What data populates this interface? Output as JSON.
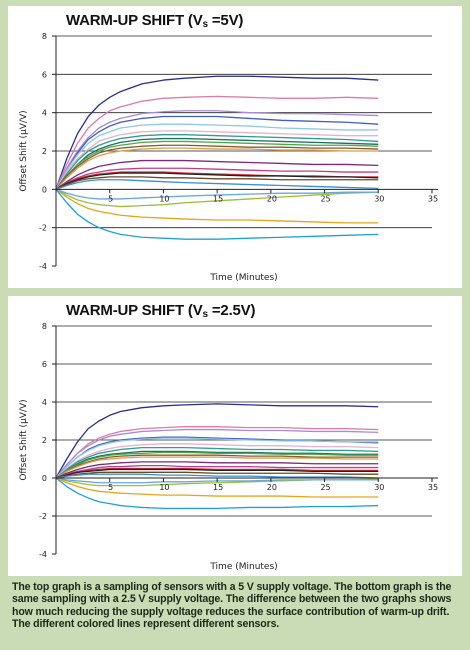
{
  "chart_data": [
    {
      "type": "line",
      "title_main": "WARM-UP SHIFT (V",
      "title_sub": "s",
      "title_end": " =5V)",
      "xlabel": "Time (Minutes)",
      "ylabel": "Offset Shift (µV/V)",
      "xlim": [
        0,
        35
      ],
      "ylim": [
        -4,
        8
      ],
      "xticks": [
        "5",
        "10",
        "15",
        "20",
        "25",
        "30",
        "35"
      ],
      "yticks": [
        "8",
        "6",
        "4",
        "2",
        "0",
        "-2",
        "-4"
      ],
      "grid": "horizontal",
      "x": [
        0,
        1,
        2,
        3,
        4,
        5,
        6,
        8,
        10,
        12,
        15,
        18,
        21,
        24,
        27,
        30
      ],
      "series": [
        {
          "color": "#2a2f8f",
          "values": [
            0,
            1.6,
            2.9,
            3.8,
            4.4,
            4.8,
            5.1,
            5.5,
            5.7,
            5.8,
            5.9,
            5.9,
            5.85,
            5.8,
            5.8,
            5.7
          ]
        },
        {
          "color": "#e07aa8",
          "values": [
            0,
            1.3,
            2.4,
            3.2,
            3.7,
            4.1,
            4.3,
            4.6,
            4.75,
            4.8,
            4.85,
            4.8,
            4.75,
            4.75,
            4.8,
            4.75
          ]
        },
        {
          "color": "#a78bd6",
          "values": [
            0,
            1.1,
            2.0,
            2.7,
            3.2,
            3.5,
            3.7,
            3.95,
            4.05,
            4.1,
            4.1,
            4.0,
            3.95,
            3.95,
            3.9,
            3.85
          ]
        },
        {
          "color": "#3f5fc0",
          "values": [
            0,
            1.0,
            1.9,
            2.6,
            3.0,
            3.3,
            3.5,
            3.7,
            3.8,
            3.8,
            3.8,
            3.7,
            3.6,
            3.55,
            3.5,
            3.4
          ]
        },
        {
          "color": "#8fc7e8",
          "values": [
            0,
            1.0,
            1.8,
            2.4,
            2.8,
            3.0,
            3.2,
            3.35,
            3.4,
            3.4,
            3.35,
            3.3,
            3.2,
            3.15,
            3.1,
            3.1
          ]
        },
        {
          "color": "#e6b3cc",
          "values": [
            0,
            0.9,
            1.6,
            2.1,
            2.5,
            2.7,
            2.85,
            3.0,
            3.05,
            3.05,
            3.0,
            2.95,
            2.9,
            2.85,
            2.8,
            2.8
          ]
        },
        {
          "color": "#2e9e8f",
          "values": [
            0,
            0.8,
            1.5,
            2.0,
            2.3,
            2.5,
            2.65,
            2.8,
            2.85,
            2.85,
            2.8,
            2.75,
            2.7,
            2.65,
            2.6,
            2.5
          ]
        },
        {
          "color": "#1f6e5a",
          "values": [
            0,
            0.7,
            1.3,
            1.8,
            2.1,
            2.3,
            2.45,
            2.6,
            2.65,
            2.65,
            2.6,
            2.55,
            2.5,
            2.45,
            2.4,
            2.35
          ]
        },
        {
          "color": "#4aa84a",
          "values": [
            0,
            0.7,
            1.3,
            1.7,
            2.0,
            2.2,
            2.3,
            2.45,
            2.5,
            2.5,
            2.45,
            2.4,
            2.35,
            2.3,
            2.3,
            2.25
          ]
        },
        {
          "color": "#8b5a2b",
          "values": [
            0,
            0.7,
            1.2,
            1.6,
            1.9,
            2.05,
            2.15,
            2.25,
            2.3,
            2.3,
            2.25,
            2.2,
            2.2,
            2.15,
            2.15,
            2.1
          ]
        },
        {
          "color": "#d4a050",
          "values": [
            0,
            0.6,
            1.1,
            1.5,
            1.75,
            1.9,
            2.0,
            2.1,
            2.15,
            2.15,
            2.1,
            2.1,
            2.05,
            2.05,
            2.0,
            2.0
          ]
        },
        {
          "color": "#7a2a7a",
          "values": [
            0,
            0.4,
            0.75,
            1.0,
            1.2,
            1.3,
            1.4,
            1.5,
            1.5,
            1.5,
            1.45,
            1.4,
            1.35,
            1.3,
            1.3,
            1.25
          ]
        },
        {
          "color": "#c23b8f",
          "values": [
            0,
            0.35,
            0.6,
            0.8,
            0.9,
            1.0,
            1.05,
            1.1,
            1.1,
            1.1,
            1.05,
            1.0,
            0.95,
            0.95,
            0.9,
            0.9
          ]
        },
        {
          "color": "#cc3333",
          "values": [
            0,
            0.3,
            0.55,
            0.7,
            0.8,
            0.85,
            0.9,
            0.9,
            0.9,
            0.85,
            0.8,
            0.75,
            0.7,
            0.7,
            0.65,
            0.65
          ]
        },
        {
          "color": "#222222",
          "values": [
            0,
            0.3,
            0.5,
            0.65,
            0.75,
            0.8,
            0.85,
            0.85,
            0.85,
            0.8,
            0.75,
            0.7,
            0.7,
            0.65,
            0.65,
            0.6
          ]
        },
        {
          "color": "#6b4a2a",
          "values": [
            0,
            0.25,
            0.45,
            0.55,
            0.6,
            0.65,
            0.65,
            0.65,
            0.6,
            0.6,
            0.55,
            0.55,
            0.5,
            0.5,
            0.5,
            0.5
          ]
        },
        {
          "color": "#3a8fd6",
          "values": [
            0,
            0.2,
            0.35,
            0.45,
            0.5,
            0.5,
            0.5,
            0.45,
            0.4,
            0.35,
            0.3,
            0.25,
            0.2,
            0.15,
            0.1,
            0.05
          ]
        },
        {
          "color": "#9bbf3a",
          "values": [
            0,
            -0.3,
            -0.55,
            -0.7,
            -0.8,
            -0.85,
            -0.9,
            -0.85,
            -0.8,
            -0.7,
            -0.6,
            -0.5,
            -0.4,
            -0.3,
            -0.2,
            -0.15
          ]
        },
        {
          "color": "#6aa8d8",
          "values": [
            0,
            -0.2,
            -0.35,
            -0.45,
            -0.5,
            -0.5,
            -0.5,
            -0.45,
            -0.4,
            -0.35,
            -0.3,
            -0.25,
            -0.2,
            -0.2,
            -0.15,
            -0.15
          ]
        },
        {
          "color": "#e8a41a",
          "values": [
            0,
            -0.4,
            -0.75,
            -1.0,
            -1.15,
            -1.25,
            -1.35,
            -1.45,
            -1.5,
            -1.55,
            -1.6,
            -1.6,
            -1.65,
            -1.7,
            -1.75,
            -1.75
          ]
        },
        {
          "color": "#1fa0dc",
          "values": [
            0,
            -0.7,
            -1.3,
            -1.7,
            -2.0,
            -2.2,
            -2.35,
            -2.5,
            -2.55,
            -2.6,
            -2.6,
            -2.55,
            -2.5,
            -2.45,
            -2.4,
            -2.35
          ]
        }
      ]
    },
    {
      "type": "line",
      "title_main": "WARM-UP SHIFT (V",
      "title_sub": "s",
      "title_end": " =2.5V)",
      "xlabel": "Time (Minutes)",
      "ylabel": "Offset Shift (µV/V)",
      "xlim": [
        0,
        35
      ],
      "ylim": [
        -4,
        8
      ],
      "xticks": [
        "5",
        "10",
        "15",
        "20",
        "25",
        "30",
        "35"
      ],
      "yticks": [
        "8",
        "6",
        "4",
        "2",
        "0",
        "-2",
        "-4"
      ],
      "grid": "horizontal",
      "x": [
        0,
        1,
        2,
        3,
        4,
        5,
        6,
        8,
        10,
        12,
        15,
        18,
        21,
        24,
        27,
        30
      ],
      "series": [
        {
          "color": "#2a2f8f",
          "values": [
            0,
            1.0,
            1.9,
            2.6,
            3.0,
            3.3,
            3.5,
            3.7,
            3.8,
            3.85,
            3.9,
            3.85,
            3.8,
            3.8,
            3.8,
            3.75
          ]
        },
        {
          "color": "#e07aa8",
          "values": [
            0,
            0.7,
            1.3,
            1.8,
            2.1,
            2.3,
            2.45,
            2.6,
            2.65,
            2.7,
            2.7,
            2.65,
            2.65,
            2.6,
            2.6,
            2.55
          ]
        },
        {
          "color": "#a78bd6",
          "values": [
            0,
            0.7,
            1.3,
            1.7,
            2.0,
            2.2,
            2.3,
            2.45,
            2.5,
            2.55,
            2.55,
            2.5,
            2.5,
            2.45,
            2.45,
            2.4
          ]
        },
        {
          "color": "#3f5fc0",
          "values": [
            0,
            0.6,
            1.1,
            1.5,
            1.75,
            1.9,
            2.0,
            2.1,
            2.15,
            2.15,
            2.1,
            2.05,
            2.0,
            1.95,
            1.9,
            1.85
          ]
        },
        {
          "color": "#8fc7e8",
          "values": [
            0,
            0.6,
            1.1,
            1.45,
            1.7,
            1.85,
            1.95,
            2.05,
            2.1,
            2.1,
            2.05,
            2.0,
            1.95,
            1.95,
            1.9,
            1.9
          ]
        },
        {
          "color": "#e6b3cc",
          "values": [
            0,
            0.5,
            0.9,
            1.2,
            1.4,
            1.55,
            1.65,
            1.75,
            1.8,
            1.8,
            1.75,
            1.7,
            1.7,
            1.65,
            1.65,
            1.6
          ]
        },
        {
          "color": "#2e9e8f",
          "values": [
            0,
            0.45,
            0.85,
            1.1,
            1.3,
            1.4,
            1.5,
            1.6,
            1.6,
            1.6,
            1.55,
            1.5,
            1.5,
            1.45,
            1.45,
            1.4
          ]
        },
        {
          "color": "#1f6e5a",
          "values": [
            0,
            0.4,
            0.75,
            1.0,
            1.15,
            1.25,
            1.3,
            1.4,
            1.4,
            1.4,
            1.35,
            1.35,
            1.3,
            1.3,
            1.25,
            1.25
          ]
        },
        {
          "color": "#4aa84a",
          "values": [
            0,
            0.4,
            0.7,
            0.95,
            1.1,
            1.2,
            1.25,
            1.3,
            1.35,
            1.35,
            1.3,
            1.3,
            1.25,
            1.25,
            1.2,
            1.2
          ]
        },
        {
          "color": "#8b5a2b",
          "values": [
            0,
            0.35,
            0.65,
            0.85,
            1.0,
            1.1,
            1.15,
            1.2,
            1.2,
            1.2,
            1.2,
            1.15,
            1.15,
            1.1,
            1.1,
            1.1
          ]
        },
        {
          "color": "#d4a050",
          "values": [
            0,
            0.35,
            0.6,
            0.8,
            0.95,
            1.0,
            1.05,
            1.1,
            1.1,
            1.1,
            1.1,
            1.05,
            1.05,
            1.05,
            1.0,
            1.0
          ]
        },
        {
          "color": "#7a2a7a",
          "values": [
            0,
            0.25,
            0.45,
            0.6,
            0.7,
            0.75,
            0.8,
            0.85,
            0.85,
            0.85,
            0.8,
            0.8,
            0.8,
            0.75,
            0.75,
            0.75
          ]
        },
        {
          "color": "#c23b8f",
          "values": [
            0,
            0.2,
            0.35,
            0.45,
            0.55,
            0.6,
            0.6,
            0.65,
            0.65,
            0.6,
            0.6,
            0.6,
            0.55,
            0.55,
            0.55,
            0.55
          ]
        },
        {
          "color": "#cc3333",
          "values": [
            0,
            0.2,
            0.3,
            0.4,
            0.45,
            0.5,
            0.5,
            0.5,
            0.5,
            0.5,
            0.45,
            0.45,
            0.45,
            0.4,
            0.4,
            0.4
          ]
        },
        {
          "color": "#222222",
          "values": [
            0,
            0.15,
            0.3,
            0.35,
            0.4,
            0.45,
            0.45,
            0.45,
            0.45,
            0.45,
            0.4,
            0.4,
            0.4,
            0.35,
            0.35,
            0.35
          ]
        },
        {
          "color": "#6b4a2a",
          "values": [
            0,
            0.1,
            0.2,
            0.25,
            0.3,
            0.3,
            0.3,
            0.3,
            0.3,
            0.3,
            0.25,
            0.25,
            0.25,
            0.25,
            0.2,
            0.2
          ]
        },
        {
          "color": "#3a8fd6",
          "values": [
            0,
            0.1,
            0.15,
            0.2,
            0.2,
            0.2,
            0.2,
            0.2,
            0.15,
            0.15,
            0.1,
            0.1,
            0.05,
            0.05,
            0.05,
            0.0
          ]
        },
        {
          "color": "#9bbf3a",
          "values": [
            0,
            -0.15,
            -0.25,
            -0.35,
            -0.4,
            -0.4,
            -0.4,
            -0.4,
            -0.35,
            -0.3,
            -0.25,
            -0.2,
            -0.15,
            -0.1,
            -0.1,
            -0.05
          ]
        },
        {
          "color": "#6aa8d8",
          "values": [
            0,
            -0.1,
            -0.15,
            -0.2,
            -0.25,
            -0.25,
            -0.25,
            -0.25,
            -0.2,
            -0.2,
            -0.15,
            -0.15,
            -0.1,
            -0.1,
            -0.1,
            -0.1
          ]
        },
        {
          "color": "#e8a41a",
          "values": [
            0,
            -0.25,
            -0.45,
            -0.6,
            -0.7,
            -0.75,
            -0.8,
            -0.85,
            -0.9,
            -0.9,
            -0.95,
            -0.95,
            -0.95,
            -1.0,
            -1.0,
            -1.0
          ]
        },
        {
          "color": "#1fa0dc",
          "values": [
            0,
            -0.45,
            -0.8,
            -1.05,
            -1.25,
            -1.35,
            -1.45,
            -1.55,
            -1.6,
            -1.6,
            -1.6,
            -1.55,
            -1.55,
            -1.5,
            -1.5,
            -1.45
          ]
        }
      ]
    }
  ],
  "caption": "The top graph is a sampling of sensors with a 5 V supply voltage. The bottom graph is the same sampling with a 2.5 V supply voltage. The difference between the two graphs shows how much reducing the supply voltage reduces the surface contribution of warm-up drift. The different colored lines represent different sensors."
}
